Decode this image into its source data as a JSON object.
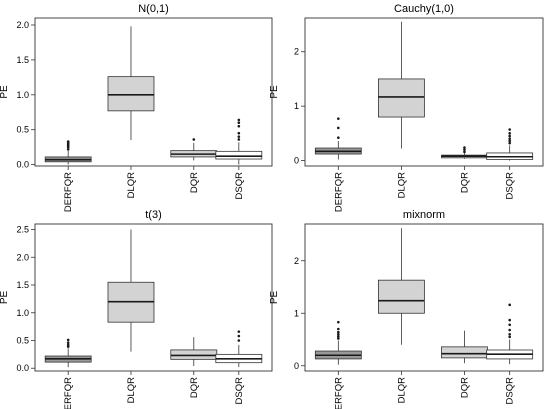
{
  "chart_data": [
    {
      "type": "box",
      "title": "N(0,1)",
      "xlabel": "",
      "ylabel": "PE",
      "ylim": [
        -0.02,
        2.1
      ],
      "yticks": [
        0.0,
        0.5,
        1.0,
        1.5,
        2.0
      ],
      "ytick_labels": [
        "0.0",
        "0.5",
        "1.0",
        "1.5",
        "2.0"
      ],
      "categories": [
        "DERFQR",
        "DLQR",
        "DQR",
        "DSQR"
      ],
      "fill_colors": [
        "#999999",
        "#d3d3d3",
        "#d3d3d3",
        "#ffffff"
      ],
      "boxes": [
        {
          "whisker_low": 0.0,
          "q1": 0.04,
          "median": 0.07,
          "q3": 0.11,
          "whisker_high": 0.2,
          "outliers": [
            0.22,
            0.25,
            0.27,
            0.29,
            0.31,
            0.33
          ]
        },
        {
          "whisker_low": 0.35,
          "q1": 0.77,
          "median": 1.0,
          "q3": 1.26,
          "whisker_high": 1.98,
          "outliers": []
        },
        {
          "whisker_low": 0.06,
          "q1": 0.11,
          "median": 0.15,
          "q3": 0.2,
          "whisker_high": 0.31,
          "outliers": [
            0.36
          ]
        },
        {
          "whisker_low": 0.0,
          "q1": 0.08,
          "median": 0.12,
          "q3": 0.19,
          "whisker_high": 0.32,
          "outliers": [
            0.36,
            0.4,
            0.45,
            0.55,
            0.6,
            0.64
          ]
        }
      ]
    },
    {
      "type": "box",
      "title": "Cauchy(1,0)",
      "xlabel": "",
      "ylabel": "PE",
      "ylim": [
        -0.1,
        2.62
      ],
      "yticks": [
        0,
        1,
        2
      ],
      "ytick_labels": [
        "0",
        "1",
        "2"
      ],
      "categories": [
        "DERFQR",
        "DLQR",
        "DQR",
        "DSQR"
      ],
      "fill_colors": [
        "#999999",
        "#d3d3d3",
        "#d3d3d3",
        "#ffffff"
      ],
      "boxes": [
        {
          "whisker_low": 0.02,
          "q1": 0.12,
          "median": 0.17,
          "q3": 0.23,
          "whisker_high": 0.36,
          "outliers": [
            0.42,
            0.6,
            0.77
          ]
        },
        {
          "whisker_low": 0.22,
          "q1": 0.8,
          "median": 1.17,
          "q3": 1.5,
          "whisker_high": 2.55,
          "outliers": []
        },
        {
          "whisker_low": 0.03,
          "q1": 0.05,
          "median": 0.08,
          "q3": 0.1,
          "whisker_high": 0.14,
          "outliers": [
            0.16,
            0.2,
            0.24
          ]
        },
        {
          "whisker_low": 0.0,
          "q1": 0.02,
          "median": 0.07,
          "q3": 0.14,
          "whisker_high": 0.28,
          "outliers": [
            0.32,
            0.36,
            0.4,
            0.45,
            0.5,
            0.57
          ]
        }
      ]
    },
    {
      "type": "box",
      "title": "t(3)",
      "xlabel": "",
      "ylabel": "PE",
      "ylim": [
        -0.05,
        2.6
      ],
      "yticks": [
        0.0,
        0.5,
        1.0,
        1.5,
        2.0,
        2.5
      ],
      "ytick_labels": [
        "0.0",
        "0.5",
        "1.0",
        "1.5",
        "2.0",
        "2.5"
      ],
      "categories": [
        "DERFQR",
        "DLQR",
        "DQR",
        "DSQR"
      ],
      "fill_colors": [
        "#999999",
        "#d3d3d3",
        "#d3d3d3",
        "#ffffff"
      ],
      "boxes": [
        {
          "whisker_low": 0.02,
          "q1": 0.11,
          "median": 0.17,
          "q3": 0.22,
          "whisker_high": 0.36,
          "outliers": [
            0.39,
            0.42,
            0.46,
            0.51
          ]
        },
        {
          "whisker_low": 0.3,
          "q1": 0.83,
          "median": 1.2,
          "q3": 1.55,
          "whisker_high": 2.5,
          "outliers": []
        },
        {
          "whisker_low": 0.04,
          "q1": 0.16,
          "median": 0.23,
          "q3": 0.33,
          "whisker_high": 0.56,
          "outliers": []
        },
        {
          "whisker_low": 0.02,
          "q1": 0.1,
          "median": 0.17,
          "q3": 0.25,
          "whisker_high": 0.42,
          "outliers": [
            0.5,
            0.58,
            0.66
          ]
        }
      ]
    },
    {
      "type": "box",
      "title": "mixnorm",
      "xlabel": "",
      "ylabel": "PE",
      "ylim": [
        -0.1,
        2.7
      ],
      "yticks": [
        0,
        1,
        2
      ],
      "ytick_labels": [
        "0",
        "1",
        "2"
      ],
      "categories": [
        "DERFQR",
        "DLQR",
        "DQR",
        "DSQR"
      ],
      "fill_colors": [
        "#999999",
        "#d3d3d3",
        "#d3d3d3",
        "#ffffff"
      ],
      "boxes": [
        {
          "whisker_low": 0.02,
          "q1": 0.13,
          "median": 0.2,
          "q3": 0.28,
          "whisker_high": 0.48,
          "outliers": [
            0.52,
            0.56,
            0.6,
            0.64,
            0.7,
            0.83
          ]
        },
        {
          "whisker_low": 0.4,
          "q1": 1.0,
          "median": 1.24,
          "q3": 1.63,
          "whisker_high": 2.62,
          "outliers": []
        },
        {
          "whisker_low": 0.05,
          "q1": 0.15,
          "median": 0.23,
          "q3": 0.36,
          "whisker_high": 0.67,
          "outliers": []
        },
        {
          "whisker_low": 0.03,
          "q1": 0.13,
          "median": 0.22,
          "q3": 0.3,
          "whisker_high": 0.5,
          "outliers": [
            0.55,
            0.6,
            0.68,
            0.78,
            0.87,
            1.16
          ]
        }
      ]
    }
  ]
}
